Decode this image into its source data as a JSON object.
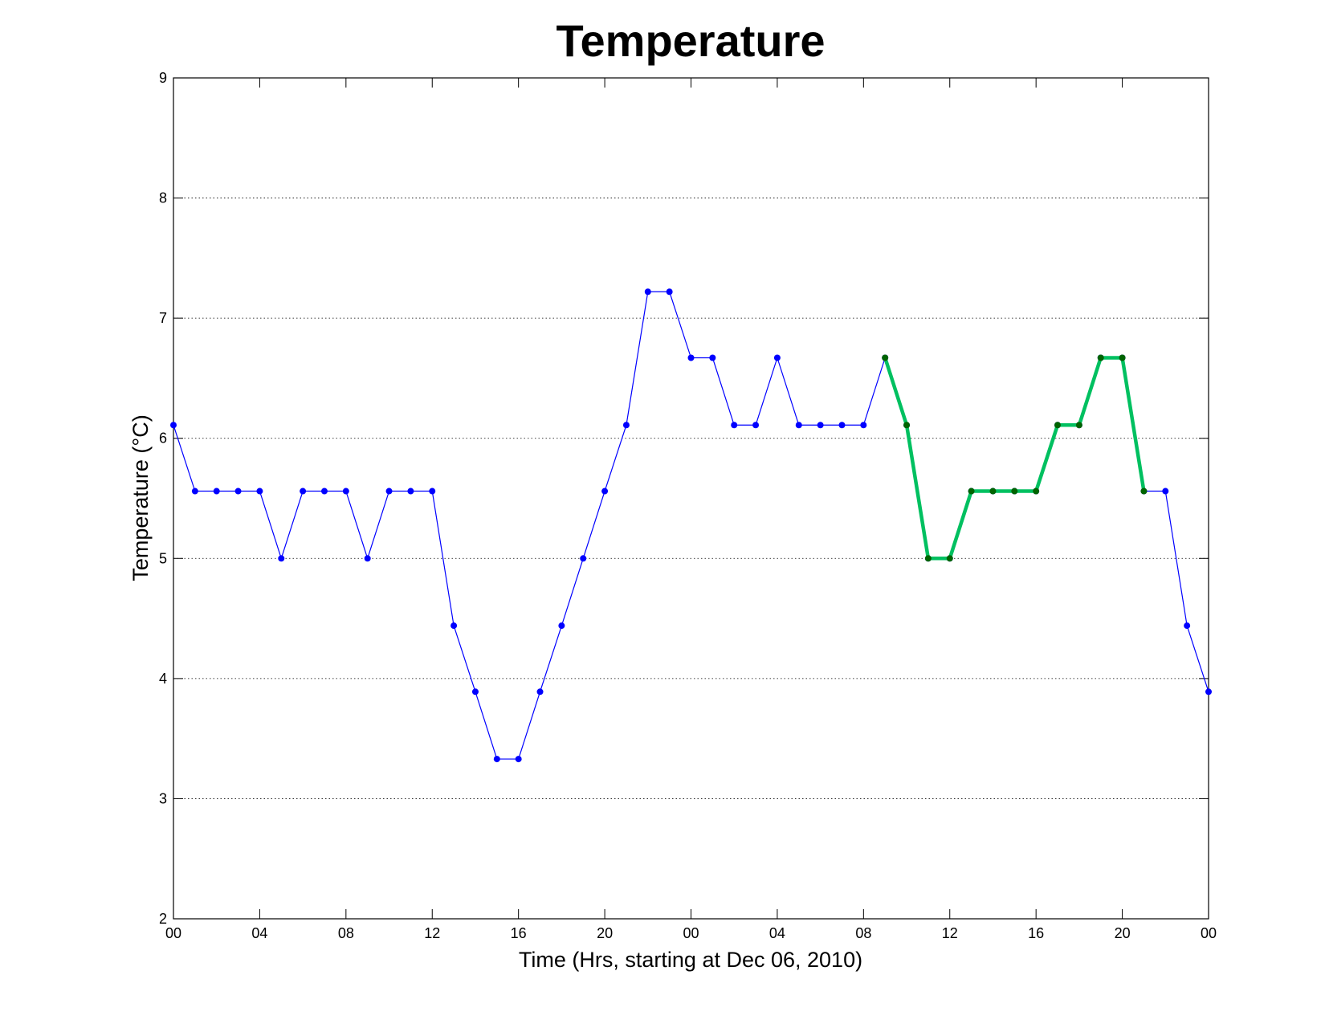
{
  "chart_data": {
    "type": "line",
    "title": "Temperature",
    "xlabel": "Time (Hrs, starting at Dec 06, 2010)",
    "ylabel": "Temperature (°C)",
    "x_tick_labels": [
      "00",
      "04",
      "08",
      "12",
      "16",
      "20",
      "00",
      "04",
      "08",
      "12",
      "16",
      "20",
      "00"
    ],
    "x_tick_hours": [
      0,
      4,
      8,
      12,
      16,
      20,
      24,
      28,
      32,
      36,
      40,
      44,
      48
    ],
    "y_tick_labels": [
      "2",
      "3",
      "4",
      "5",
      "6",
      "7",
      "8",
      "9"
    ],
    "xlim": [
      0,
      48
    ],
    "ylim": [
      2,
      9
    ],
    "grid": "horizontal dotted",
    "series": [
      {
        "color": "#0000ff",
        "x": [
          0,
          1,
          2,
          3,
          4,
          5,
          6,
          7,
          8,
          9,
          10,
          11,
          12,
          13,
          14,
          15,
          16,
          17,
          18,
          19,
          20,
          21,
          22,
          23,
          24,
          25,
          26,
          27,
          28,
          29,
          30,
          31,
          32,
          33,
          34,
          35,
          36,
          37,
          38,
          39,
          40,
          41,
          42,
          43,
          44,
          45,
          46,
          47,
          48
        ],
        "values": [
          6.11,
          5.56,
          5.56,
          5.56,
          5.56,
          5.0,
          5.56,
          5.56,
          5.56,
          5.0,
          5.56,
          5.56,
          5.56,
          4.44,
          3.89,
          3.33,
          3.33,
          3.89,
          4.44,
          5.0,
          5.56,
          6.11,
          7.22,
          7.22,
          6.67,
          6.67,
          6.11,
          6.11,
          6.67,
          6.11,
          6.11,
          6.11,
          6.11,
          6.67,
          6.11,
          5.0,
          5.0,
          5.56,
          5.56,
          5.56,
          5.56,
          6.11,
          6.11,
          6.67,
          6.67,
          5.56,
          5.56,
          4.44,
          3.89
        ]
      },
      {
        "color": "#00c060",
        "marker_color": "#006400",
        "x": [
          33,
          34,
          35,
          36,
          37,
          38,
          39,
          40,
          41,
          42,
          43,
          44,
          45
        ],
        "values": [
          6.67,
          6.11,
          5.0,
          5.0,
          5.56,
          5.56,
          5.56,
          5.56,
          6.11,
          6.11,
          6.67,
          6.67,
          5.56
        ]
      }
    ]
  }
}
